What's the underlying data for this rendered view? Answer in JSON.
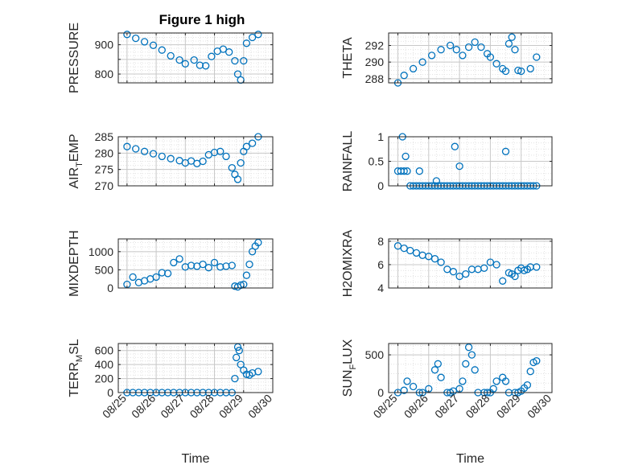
{
  "figure_title": "Figure 1 high",
  "colors": {
    "marker": "#0072BD",
    "axis": "#262626",
    "grid": "#c8c8c8",
    "minor_grid": "#e2e2e2"
  },
  "shared_x": {
    "label": "Time",
    "ticks": [
      "08/25",
      "08/26",
      "08/27",
      "08/28",
      "08/29",
      "08/30"
    ]
  },
  "chart_data": [
    {
      "type": "scatter",
      "name": "pressure",
      "ylabel": "PRESSURE",
      "ylim": [
        770,
        940
      ],
      "yticks": [
        800,
        850,
        900
      ],
      "ytick_labels": [
        "800",
        "",
        "900"
      ],
      "title": "Figure 1 high",
      "x": [
        25.0,
        25.3,
        25.6,
        25.9,
        26.2,
        26.5,
        26.8,
        27.0,
        27.3,
        27.5,
        27.7,
        27.9,
        28.1,
        28.3,
        28.5,
        28.7,
        28.8,
        28.9,
        29.0,
        29.1,
        29.3,
        29.5
      ],
      "y": [
        935,
        922,
        910,
        898,
        882,
        862,
        848,
        835,
        848,
        830,
        828,
        860,
        878,
        885,
        875,
        845,
        800,
        780,
        845,
        905,
        925,
        935
      ]
    },
    {
      "type": "scatter",
      "name": "theta",
      "ylabel": "THETA",
      "ylim": [
        287.5,
        293.5
      ],
      "yticks": [
        288,
        290,
        292
      ],
      "ytick_labels": [
        "288",
        "290",
        "292"
      ],
      "x": [
        25.0,
        25.2,
        25.5,
        25.8,
        26.1,
        26.4,
        26.7,
        26.9,
        27.1,
        27.3,
        27.5,
        27.7,
        27.9,
        28.0,
        28.2,
        28.4,
        28.5,
        28.6,
        28.7,
        28.8,
        28.9,
        29.0,
        29.3,
        29.5
      ],
      "y": [
        287.5,
        288.4,
        289.2,
        290.0,
        290.8,
        291.5,
        292.0,
        291.5,
        290.8,
        291.8,
        292.4,
        291.8,
        291.0,
        290.6,
        289.8,
        289.2,
        288.9,
        292.2,
        293.0,
        291.5,
        289.0,
        288.9,
        289.2,
        290.6
      ]
    },
    {
      "type": "scatter",
      "name": "air_temp",
      "ylabel": "AIR_TEMP",
      "ylim": [
        270,
        285
      ],
      "yticks": [
        270,
        275,
        280,
        285
      ],
      "ytick_labels": [
        "270",
        "275",
        "280",
        "285"
      ],
      "x": [
        25.0,
        25.3,
        25.6,
        25.9,
        26.2,
        26.5,
        26.8,
        27.0,
        27.2,
        27.4,
        27.6,
        27.8,
        28.0,
        28.2,
        28.4,
        28.6,
        28.7,
        28.8,
        28.9,
        29.0,
        29.1,
        29.3,
        29.5
      ],
      "y": [
        282,
        281.3,
        280.5,
        279.8,
        279.0,
        278.3,
        277.7,
        277.0,
        277.6,
        276.8,
        277.5,
        279.5,
        280.2,
        280.5,
        279.0,
        275.5,
        273.5,
        272.0,
        277.0,
        280.5,
        282.0,
        283.0,
        285.0
      ]
    },
    {
      "type": "scatter",
      "name": "rainfall",
      "ylabel": "RAINFALL",
      "ylim": [
        0,
        1
      ],
      "yticks": [
        0,
        0.5,
        1
      ],
      "ytick_labels": [
        "0",
        "0.5",
        "1"
      ],
      "x": [
        25.0,
        25.1,
        25.15,
        25.2,
        25.25,
        25.3,
        25.4,
        25.5,
        25.6,
        25.7,
        25.8,
        25.9,
        26.0,
        26.1,
        26.2,
        26.3,
        26.4,
        26.5,
        26.6,
        26.7,
        26.8,
        26.9,
        27.0,
        27.1,
        27.2,
        27.3,
        27.4,
        27.5,
        27.6,
        27.7,
        27.8,
        27.9,
        28.0,
        28.1,
        28.2,
        28.3,
        28.4,
        28.5,
        28.6,
        28.7,
        28.8,
        28.9,
        29.0,
        29.1,
        29.2,
        29.3,
        29.4,
        29.5,
        25.7,
        26.25,
        26.85,
        27.0,
        28.5
      ],
      "y": [
        0.3,
        0.3,
        1.0,
        0.3,
        0.6,
        0.3,
        0,
        0,
        0,
        0,
        0,
        0,
        0,
        0,
        0,
        0,
        0,
        0,
        0,
        0,
        0,
        0,
        0,
        0,
        0,
        0,
        0,
        0,
        0,
        0,
        0,
        0,
        0,
        0,
        0,
        0,
        0,
        0,
        0,
        0,
        0,
        0,
        0,
        0,
        0,
        0,
        0,
        0,
        0.3,
        0.1,
        0.8,
        0.4,
        0.7
      ]
    },
    {
      "type": "scatter",
      "name": "mixdepth",
      "ylabel": "MIXDEPTH",
      "ylim": [
        0,
        1350
      ],
      "yticks": [
        0,
        500,
        1000
      ],
      "ytick_labels": [
        "0",
        "500",
        "1000"
      ],
      "x": [
        25.0,
        25.2,
        25.4,
        25.6,
        25.8,
        26.0,
        26.2,
        26.4,
        26.6,
        26.8,
        27.0,
        27.2,
        27.4,
        27.6,
        27.8,
        28.0,
        28.2,
        28.4,
        28.6,
        28.7,
        28.8,
        28.9,
        29.0,
        29.1,
        29.2,
        29.3,
        29.4,
        29.5
      ],
      "y": [
        100,
        300,
        150,
        200,
        250,
        300,
        420,
        400,
        700,
        800,
        580,
        620,
        600,
        650,
        560,
        700,
        580,
        600,
        620,
        50,
        30,
        80,
        100,
        350,
        650,
        1000,
        1150,
        1250
      ]
    },
    {
      "type": "scatter",
      "name": "h2omixra",
      "ylabel": "H2OMIXRA",
      "ylim": [
        4,
        8.2
      ],
      "yticks": [
        4,
        6,
        8
      ],
      "ytick_labels": [
        "4",
        "6",
        "8"
      ],
      "x": [
        25.0,
        25.2,
        25.4,
        25.6,
        25.8,
        26.0,
        26.2,
        26.4,
        26.6,
        26.8,
        27.0,
        27.2,
        27.4,
        27.6,
        27.8,
        28.0,
        28.2,
        28.4,
        28.6,
        28.7,
        28.8,
        28.9,
        29.0,
        29.1,
        29.2,
        29.3,
        29.5
      ],
      "y": [
        7.6,
        7.4,
        7.2,
        7.0,
        6.8,
        6.7,
        6.5,
        6.2,
        5.6,
        5.4,
        5.0,
        5.2,
        5.6,
        5.6,
        5.7,
        6.2,
        6.0,
        4.6,
        5.3,
        5.2,
        5.0,
        5.5,
        5.7,
        5.5,
        5.6,
        5.8,
        5.8
      ]
    },
    {
      "type": "scatter",
      "name": "terr_msl",
      "ylabel": "TERR_MSL",
      "ylim": [
        0,
        700
      ],
      "yticks": [
        0,
        200,
        400,
        600
      ],
      "ytick_labels": [
        "0",
        "200",
        "400",
        "600"
      ],
      "x": [
        25.0,
        25.2,
        25.4,
        25.6,
        25.8,
        26.0,
        26.2,
        26.4,
        26.6,
        26.8,
        27.0,
        27.2,
        27.4,
        27.6,
        27.8,
        28.0,
        28.2,
        28.4,
        28.6,
        28.7,
        28.75,
        28.8,
        28.85,
        28.9,
        29.0,
        29.1,
        29.2,
        29.3,
        29.5
      ],
      "y": [
        0,
        0,
        0,
        0,
        0,
        0,
        0,
        0,
        0,
        0,
        0,
        0,
        0,
        0,
        0,
        0,
        0,
        0,
        0,
        200,
        500,
        650,
        600,
        400,
        320,
        260,
        250,
        280,
        300
      ]
    },
    {
      "type": "scatter",
      "name": "sun_flux",
      "ylabel": "SUN_FLUX",
      "ylim": [
        0,
        650
      ],
      "yticks": [
        0,
        500
      ],
      "ytick_labels": [
        "0",
        "500"
      ],
      "x": [
        25.0,
        25.2,
        25.3,
        25.5,
        25.7,
        25.8,
        26.0,
        26.2,
        26.3,
        26.4,
        26.6,
        26.7,
        26.8,
        27.0,
        27.1,
        27.2,
        27.3,
        27.4,
        27.5,
        27.6,
        27.8,
        27.9,
        28.0,
        28.1,
        28.2,
        28.4,
        28.5,
        28.6,
        28.8,
        28.9,
        29.0,
        29.1,
        29.2,
        29.3,
        29.4,
        29.5
      ],
      "y": [
        0,
        30,
        150,
        80,
        0,
        0,
        50,
        300,
        380,
        200,
        0,
        0,
        20,
        50,
        150,
        380,
        600,
        500,
        300,
        0,
        0,
        0,
        0,
        50,
        150,
        200,
        150,
        0,
        0,
        0,
        20,
        60,
        100,
        280,
        400,
        420
      ]
    }
  ]
}
